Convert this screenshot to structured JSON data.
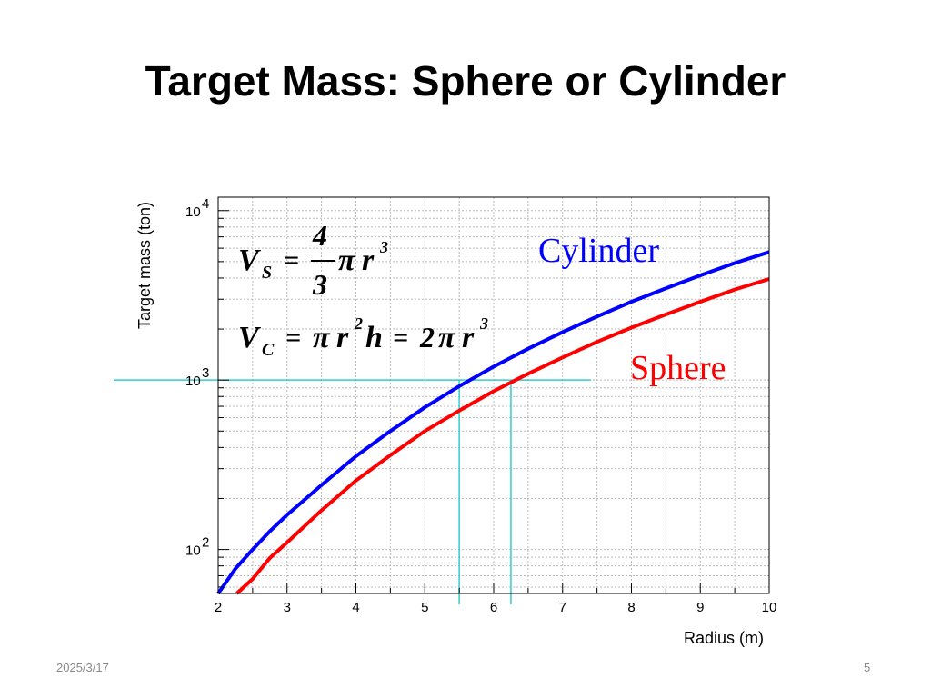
{
  "slide": {
    "title": "Target Mass: Sphere or Cylinder",
    "date": "2025/3/17",
    "page": "5"
  },
  "chart_data": {
    "type": "line",
    "xlabel": "Radius (m)",
    "ylabel": "Target mass (ton)",
    "xlim": [
      2,
      10
    ],
    "ylim": [
      55,
      12000
    ],
    "yscale": "log",
    "grid": true,
    "x_ticks": [
      "2",
      "3",
      "4",
      "5",
      "6",
      "7",
      "8",
      "9",
      "10"
    ],
    "y_ticks": [
      {
        "value": 100,
        "base": "10",
        "exp": "2"
      },
      {
        "value": 1000,
        "base": "10",
        "exp": "3"
      },
      {
        "value": 10000,
        "base": "10",
        "exp": "4"
      }
    ],
    "series": [
      {
        "name": "Cylinder",
        "color": "#0000ff",
        "x": [
          2,
          2.25,
          2.5,
          2.75,
          3,
          3.5,
          4,
          4.5,
          5,
          5.5,
          6,
          6.5,
          7,
          7.5,
          8,
          8.5,
          9,
          9.5,
          10
        ],
        "y": [
          55,
          77,
          100,
          128,
          160,
          240,
          355,
          500,
          690,
          920,
          1200,
          1530,
          1920,
          2370,
          2900,
          3480,
          4150,
          4900,
          5700
        ]
      },
      {
        "name": "Sphere",
        "color": "#ff0000",
        "x": [
          2.27,
          2.5,
          2.75,
          3,
          3.5,
          4,
          4.5,
          5,
          5.5,
          6,
          6.5,
          7,
          7.5,
          8,
          8.5,
          9,
          9.5,
          10
        ],
        "y": [
          54,
          67,
          89,
          110,
          170,
          255,
          360,
          500,
          660,
          860,
          1090,
          1360,
          1680,
          2040,
          2440,
          2900,
          3420,
          3950
        ]
      }
    ],
    "reference_lines": [
      {
        "type": "horizontal",
        "y": 1000,
        "color": "#33cccc"
      },
      {
        "type": "vertical",
        "x": 5.5,
        "color": "#33cccc"
      },
      {
        "type": "vertical",
        "x": 6.25,
        "color": "#33cccc"
      }
    ],
    "annotations": {
      "cylinder_label": "Cylinder",
      "sphere_label": "Sphere",
      "formula_sphere": {
        "lhs": "V",
        "sub": "S",
        "eq": "=",
        "num": "4",
        "den": "3",
        "pi": "π",
        "r": "r",
        "exp": "3"
      },
      "formula_cylinder": {
        "lhs": "V",
        "sub": "C",
        "eq": "=",
        "pi": "π",
        "r": "r",
        "exp2": "2",
        "h": "h",
        "eq2": "=",
        "two": "2",
        "exp3": "3"
      }
    }
  }
}
